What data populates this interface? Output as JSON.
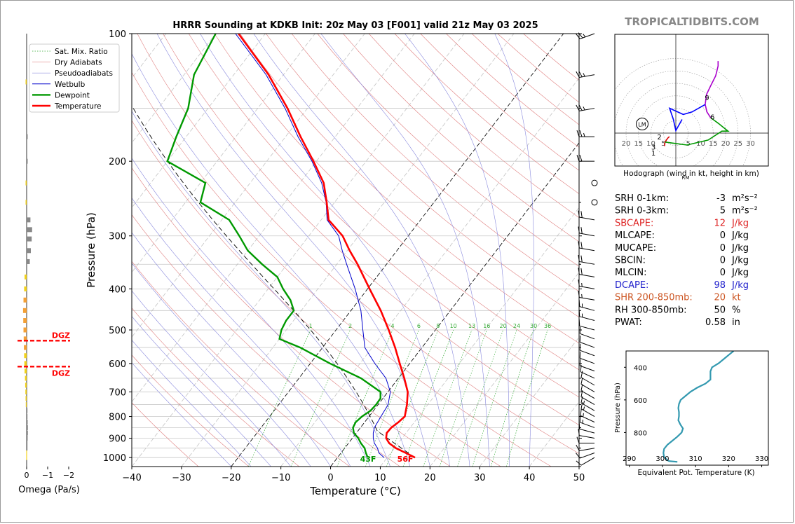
{
  "chart_data": [
    {
      "type": "skew-t",
      "title": "HRRR Sounding at KDKB Init: 20z May 03 [F001] valid 21z May 03 2025",
      "xlabel": "Temperature (°C)",
      "ylabel": "Pressure (hPa)",
      "xlim": [
        -40,
        50
      ],
      "ylim": [
        1050,
        100
      ],
      "y_scale": "log",
      "x_ticks": [
        "−40",
        "−30",
        "−20",
        "−10",
        "0",
        "10",
        "20",
        "30",
        "40",
        "50"
      ],
      "y_ticks": [
        "100",
        "200",
        "300",
        "400",
        "500",
        "600",
        "700",
        "800",
        "900",
        "1000"
      ],
      "legend_position": "top-left",
      "legend": [
        "Sat. Mix. Ratio",
        "Dry Adiabats",
        "Pseudoadiabats",
        "Wetbulb",
        "Dewpoint",
        "Temperature"
      ],
      "mixing_ratio_labels": [
        "1",
        "2",
        "4",
        "6",
        "8",
        "10",
        "13",
        "16",
        "20",
        "24",
        "30",
        "36"
      ],
      "series": [
        {
          "name": "Temperature",
          "color": "#ff0000",
          "p": [
            1000,
            975,
            950,
            925,
            900,
            875,
            850,
            825,
            800,
            775,
            750,
            700,
            650,
            600,
            550,
            500,
            450,
            400,
            350,
            325,
            300,
            275,
            250,
            225,
            200,
            175,
            150,
            125,
            100
          ],
          "t": [
            15.6,
            13.0,
            10.3,
            8.2,
            6.8,
            6.1,
            6.2,
            6.8,
            7.2,
            6.5,
            5.8,
            4.0,
            1.2,
            -2.0,
            -5.4,
            -9.4,
            -14.0,
            -19.6,
            -25.8,
            -29.5,
            -33.2,
            -38.5,
            -41.6,
            -45.2,
            -50.6,
            -57.0,
            -64.0,
            -73.0,
            -85.4
          ]
        },
        {
          "name": "Dewpoint",
          "color": "#009900",
          "p": [
            1000,
            975,
            950,
            925,
            900,
            875,
            850,
            825,
            800,
            775,
            750,
            725,
            700,
            650,
            600,
            550,
            525,
            500,
            475,
            450,
            425,
            400,
            375,
            350,
            325,
            300,
            275,
            250,
            225,
            200,
            175,
            150,
            125,
            100
          ],
          "td": [
            6.1,
            5.0,
            4.0,
            2.5,
            1.2,
            -0.5,
            -1.5,
            -1.8,
            -1.4,
            -0.6,
            -0.4,
            -0.5,
            -1.5,
            -7.5,
            -16.0,
            -24.5,
            -30.0,
            -31.0,
            -31.5,
            -31.5,
            -33.8,
            -37.0,
            -40.0,
            -45.0,
            -50.0,
            -54.0,
            -58.5,
            -67.0,
            -69.0,
            -80.0,
            -82.0,
            -84.0,
            -88.0,
            -90.0
          ]
        },
        {
          "name": "Wetbulb",
          "color": "#0000cc",
          "p": [
            1000,
            975,
            950,
            925,
            900,
            875,
            850,
            825,
            800,
            775,
            750,
            700,
            650,
            600,
            550,
            500,
            450,
            400,
            350,
            325,
            300,
            275,
            250,
            225,
            200,
            175,
            150,
            125,
            100
          ],
          "t": [
            9.4,
            7.6,
            6.6,
            5.2,
            4.2,
            3.4,
            2.8,
            2.6,
            2.4,
            2.2,
            2.0,
            0.5,
            -2.5,
            -7.0,
            -11.5,
            -14.6,
            -18.0,
            -22.5,
            -28.0,
            -31.0,
            -34.0,
            -38.8,
            -41.7,
            -45.6,
            -50.9,
            -57.5,
            -64.5,
            -73.5,
            -86.0
          ]
        }
      ],
      "surface_labels": {
        "dewpoint": "43F",
        "temperature": "56F"
      }
    },
    {
      "type": "bar",
      "xlabel": "Omega (Pa/s)",
      "x_ticks": [
        "0",
        "−1",
        "−2"
      ],
      "dgz_label": "DGZ",
      "dgz_pressures": [
        530,
        610
      ],
      "p": [
        130,
        175,
        200,
        225,
        250,
        275,
        290,
        305,
        325,
        345,
        375,
        400,
        425,
        450,
        475,
        500,
        525,
        550,
        575,
        600,
        625,
        650,
        675,
        700,
        725,
        750,
        775,
        800,
        825,
        850,
        875,
        900,
        925,
        950,
        975,
        1000
      ],
      "omega": [
        0.05,
        -0.05,
        -0.05,
        0.05,
        0.05,
        -0.18,
        -0.26,
        -0.24,
        -0.2,
        -0.15,
        0.1,
        0.12,
        0.15,
        0.17,
        0.16,
        0.15,
        0.14,
        0.13,
        0.12,
        0.11,
        0.1,
        0.08,
        0.07,
        0.06,
        0.05,
        0.04,
        -0.02,
        -0.04,
        -0.05,
        -0.06,
        -0.06,
        -0.05,
        -0.03,
        -0.02,
        0.02,
        0.02
      ]
    },
    {
      "type": "line",
      "title": "Hodograph (wind in kt, height in km)",
      "rings": [
        5,
        10,
        15,
        20,
        25,
        30
      ],
      "tick_labels": [
        "20",
        "15",
        "10",
        "5",
        "5",
        "10",
        "15",
        "20",
        "25",
        "30"
      ],
      "height_labels": [
        "1",
        "2",
        "3",
        "6",
        "9"
      ],
      "markers": [
        "LM",
        "RM"
      ],
      "segments": [
        {
          "color": "#dd0000",
          "u": [
            -4.5,
            -4.5,
            -4.3,
            -3.8,
            -3.2,
            -2.6
          ],
          "v": [
            -5.2,
            -4.7,
            -3.6,
            -2.8,
            -2.0,
            -1.4
          ]
        },
        {
          "color": "#009900",
          "u": [
            -4.3,
            -1.5,
            4.5,
            13.0,
            18.5,
            21.0,
            17.0,
            14.0
          ],
          "v": [
            -3.6,
            -4.0,
            -4.8,
            -2.8,
            0.8,
            0.8,
            4.0,
            6.2
          ]
        },
        {
          "color": "#aa00cc",
          "u": [
            14.0,
            12.5,
            11.8,
            12.3,
            14.0,
            16.0,
            17.0,
            17.0
          ],
          "v": [
            6.2,
            8.5,
            11.5,
            15.5,
            19.0,
            23.0,
            27.0,
            29.0
          ]
        },
        {
          "color": "#0000ff",
          "u": [
            11.8,
            6.5,
            3.0,
            -2.5,
            -1.0,
            0.0,
            2.5
          ],
          "v": [
            11.5,
            8.5,
            7.5,
            10.0,
            5.5,
            1.0,
            5.5
          ]
        }
      ]
    },
    {
      "type": "line",
      "xlabel": "Equivalent Pot. Temperature (K)",
      "ylabel": "Pressure (hPa)",
      "x_ticks": [
        "290",
        "300",
        "310",
        "320",
        "330"
      ],
      "y_ticks": [
        "400",
        "600",
        "800"
      ],
      "xlim": [
        289,
        332
      ],
      "ylim": [
        1000,
        300
      ],
      "color": "#3399b0",
      "p": [
        980,
        975,
        970,
        960,
        950,
        925,
        900,
        875,
        850,
        825,
        800,
        775,
        750,
        725,
        700,
        675,
        650,
        625,
        600,
        575,
        550,
        525,
        500,
        475,
        450,
        425,
        400,
        375,
        350,
        325,
        300
      ],
      "theta_e": [
        304.5,
        302.0,
        301.5,
        301.0,
        300.5,
        300.3,
        300.5,
        301.5,
        303.0,
        304.5,
        305.8,
        306.2,
        305.4,
        304.8,
        305.0,
        305.0,
        304.8,
        305.0,
        305.5,
        307.0,
        308.5,
        310.5,
        313.0,
        314.5,
        314.5,
        314.5,
        315.0,
        317.0,
        318.5,
        320.0,
        321.5
      ]
    }
  ],
  "site_label": "TROPICALTIDBITS.COM",
  "indices": [
    {
      "label": "SRH 0-1km:",
      "value": "-3",
      "unit": "m²s⁻²",
      "color": "#000000"
    },
    {
      "label": "SRH 0-3km:",
      "value": "5",
      "unit": "m²s⁻²",
      "color": "#000000"
    },
    {
      "label": "SBCAPE:",
      "value": "12",
      "unit": "J/kg",
      "color": "#dd2222"
    },
    {
      "label": "MLCAPE:",
      "value": "0",
      "unit": "J/kg",
      "color": "#000000"
    },
    {
      "label": "MUCAPE:",
      "value": "0",
      "unit": "J/kg",
      "color": "#000000"
    },
    {
      "label": "SBCIN:",
      "value": "0",
      "unit": "J/kg",
      "color": "#000000"
    },
    {
      "label": "MLCIN:",
      "value": "0",
      "unit": "J/kg",
      "color": "#000000"
    },
    {
      "label": "DCAPE:",
      "value": "98",
      "unit": "J/kg",
      "color": "#2222cc"
    },
    {
      "label": "SHR 200-850mb:",
      "value": "20",
      "unit": "kt",
      "color": "#cc5522"
    },
    {
      "label": "RH 300-850mb:",
      "value": "50",
      "unit": "%",
      "color": "#000000"
    },
    {
      "label": "PWAT:",
      "value": "0.58",
      "unit": "in",
      "color": "#000000"
    }
  ],
  "wind_barbs": {
    "p": [
      1000,
      975,
      950,
      925,
      900,
      875,
      850,
      825,
      800,
      775,
      750,
      725,
      700,
      675,
      650,
      625,
      600,
      575,
      550,
      525,
      500,
      475,
      450,
      425,
      400,
      375,
      350,
      325,
      300,
      275,
      250,
      225,
      200,
      175,
      150,
      125,
      100
    ],
    "dir": [
      240,
      250,
      260,
      270,
      280,
      285,
      290,
      295,
      300,
      300,
      300,
      300,
      300,
      300,
      295,
      290,
      290,
      290,
      290,
      290,
      285,
      285,
      285,
      280,
      280,
      280,
      280,
      280,
      280,
      280,
      270,
      270,
      270,
      270,
      260,
      260,
      250
    ],
    "speed": [
      10,
      10,
      10,
      10,
      12,
      14,
      15,
      15,
      15,
      15,
      14,
      13,
      12,
      12,
      12,
      12,
      10,
      10,
      10,
      10,
      12,
      15,
      15,
      15,
      18,
      20,
      20,
      22,
      22,
      20,
      0,
      0,
      20,
      25,
      25,
      25,
      25
    ]
  }
}
